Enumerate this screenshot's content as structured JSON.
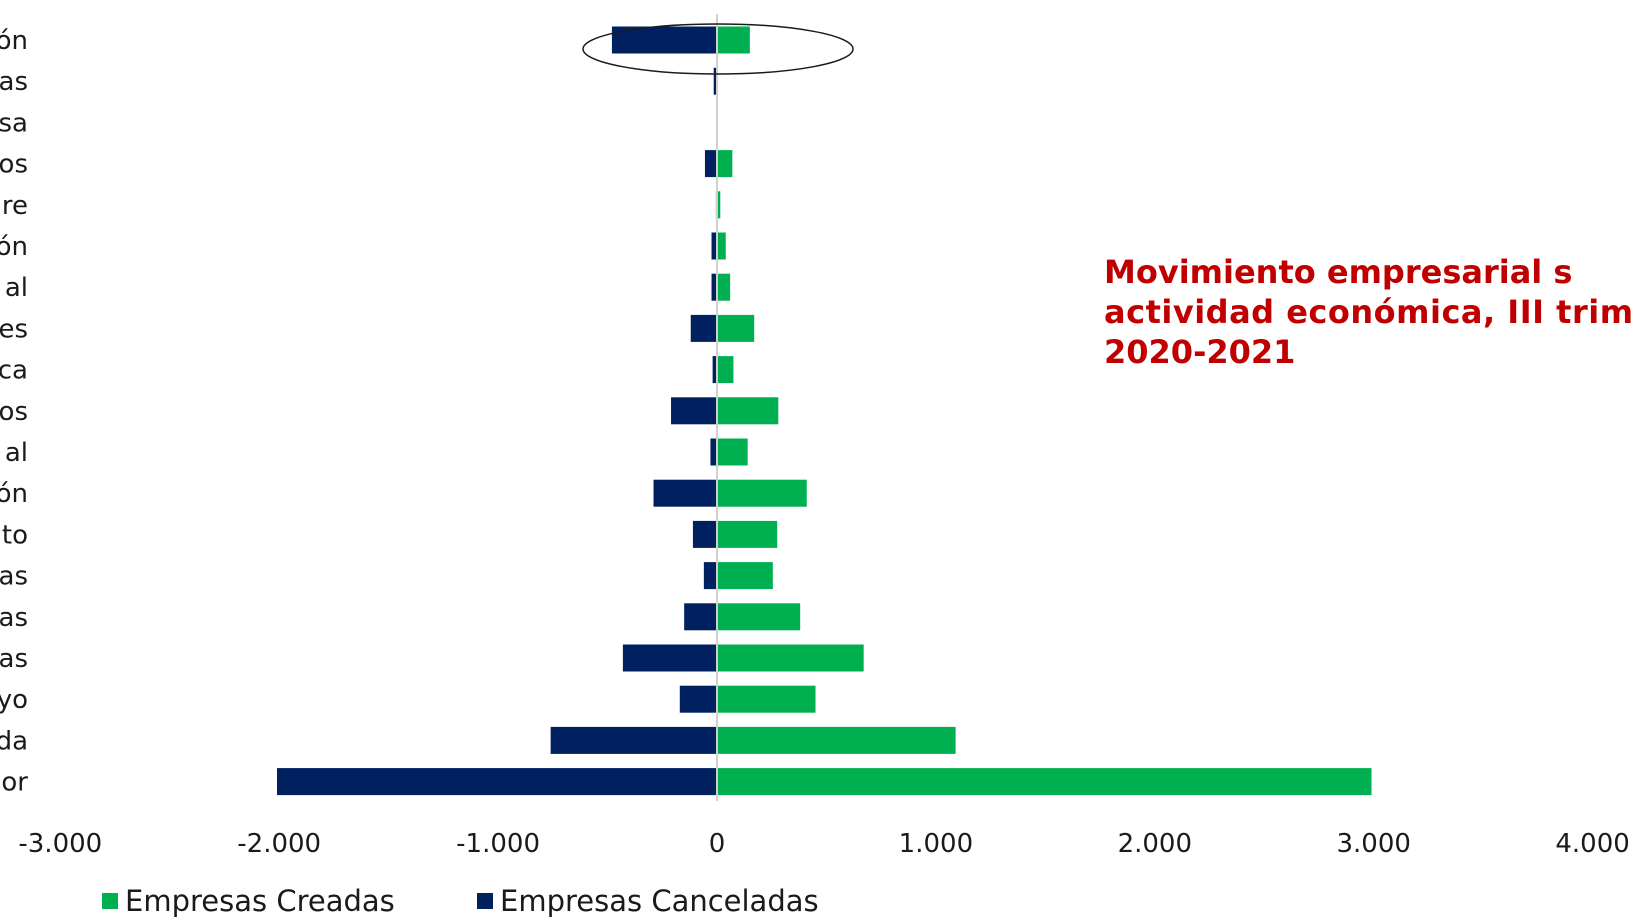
{
  "chart_data": {
    "type": "bar",
    "orientation": "horizontal",
    "categories": [
      "ón",
      "as",
      "sa",
      "os",
      "re",
      "ón",
      "al",
      "es",
      "ca",
      "os",
      "al",
      "ón",
      "to",
      "as",
      "as",
      "as",
      "yo",
      "da",
      "or"
    ],
    "series": [
      {
        "name": "Empresas Creadas",
        "color": "#00b050",
        "values": [
          150,
          0,
          0,
          70,
          15,
          40,
          60,
          170,
          75,
          280,
          140,
          410,
          275,
          255,
          380,
          670,
          450,
          1090,
          2990
        ]
      },
      {
        "name": "Empresas Canceladas",
        "color": "#002060",
        "values": [
          -480,
          -15,
          0,
          -55,
          -5,
          -25,
          -25,
          -120,
          -20,
          -210,
          -30,
          -290,
          -110,
          -60,
          -150,
          -430,
          -170,
          -760,
          -2010
        ]
      }
    ],
    "xlim": [
      -3000,
      4000
    ],
    "xticks": [
      {
        "value": -3000,
        "label": "-3.000"
      },
      {
        "value": -2000,
        "label": "-2.000"
      },
      {
        "value": -1000,
        "label": "-1.000"
      },
      {
        "value": 0,
        "label": "0"
      },
      {
        "value": 1000,
        "label": "1.000"
      },
      {
        "value": 2000,
        "label": "2.000"
      },
      {
        "value": 3000,
        "label": "3.000"
      },
      {
        "value": 4000,
        "label": "4.000"
      }
    ],
    "grid": false,
    "legend": {
      "placement": "bottom-left",
      "entries": [
        "Empresas Creadas",
        "Empresas Canceladas"
      ]
    },
    "highlighted_category_index": 0,
    "annotation": {
      "lines": [
        "Movimiento empresarial s",
        "actividad económica, III trim",
        "2020-2021"
      ],
      "color": "#c00000"
    }
  }
}
